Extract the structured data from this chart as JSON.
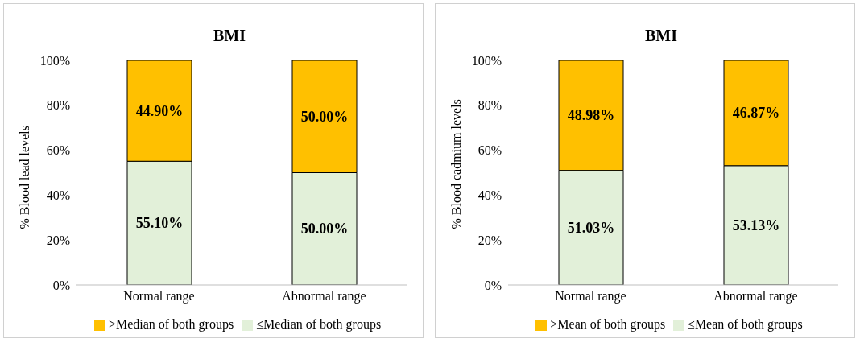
{
  "chart_data": [
    {
      "type": "bar",
      "title": "BMI",
      "ylabel": "% Blood lead levels",
      "categories": [
        "Normal range",
        "Abnormal range"
      ],
      "stacked": true,
      "legend": "bottom",
      "ylim": [
        0,
        100
      ],
      "yticks": [
        {
          "value": 0,
          "label": "0%"
        },
        {
          "value": 20,
          "label": "20%"
        },
        {
          "value": 40,
          "label": "40%"
        },
        {
          "value": 60,
          "label": "60%"
        },
        {
          "value": 80,
          "label": "80%"
        },
        {
          "value": 100,
          "label": "100%"
        }
      ],
      "series": [
        {
          "name": "≤Median of both groups",
          "color": "#e2f0d9",
          "values": [
            55.1,
            50.0
          ],
          "value_labels": [
            "55.10%",
            "50.00%"
          ]
        },
        {
          "name": ">Median of both groups",
          "color": "#ffc000",
          "values": [
            44.9,
            50.0
          ],
          "value_labels": [
            "44.90%",
            "50.00%"
          ]
        }
      ]
    },
    {
      "type": "bar",
      "title": "BMI",
      "ylabel": "% Blood cadmium levels",
      "categories": [
        "Normal range",
        "Abnormal range"
      ],
      "stacked": true,
      "legend": "bottom",
      "ylim": [
        0,
        100
      ],
      "yticks": [
        {
          "value": 0,
          "label": "0%"
        },
        {
          "value": 20,
          "label": "20%"
        },
        {
          "value": 40,
          "label": "40%"
        },
        {
          "value": 60,
          "label": "60%"
        },
        {
          "value": 80,
          "label": "80%"
        },
        {
          "value": 100,
          "label": "100%"
        }
      ],
      "series": [
        {
          "name": "≤Mean of both groups",
          "color": "#e2f0d9",
          "values": [
            51.03,
            53.13
          ],
          "value_labels": [
            "51.03%",
            "53.13%"
          ]
        },
        {
          "name": ">Mean of both groups",
          "color": "#ffc000",
          "values": [
            48.98,
            46.87
          ],
          "value_labels": [
            "48.98%",
            "46.87%"
          ]
        }
      ]
    }
  ]
}
